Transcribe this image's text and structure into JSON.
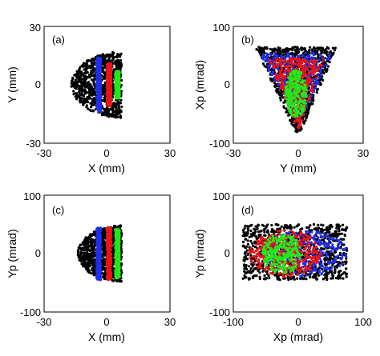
{
  "colors": {
    "black": "#000000",
    "blue": "#1f2ee8",
    "red": "#e8141a",
    "green": "#22e81a"
  },
  "chart_data": [
    {
      "id": "a",
      "type": "scatter",
      "panel_label": "(a)",
      "xlabel": "X (mm)",
      "ylabel": "Y (mm)",
      "xlim": [
        -30,
        30
      ],
      "ylim": [
        -30,
        30
      ],
      "xticks": [
        "-30",
        "0",
        "30"
      ],
      "yticks": [
        "-30",
        "0",
        "30"
      ],
      "grid": false,
      "series": [
        {
          "color": "black",
          "shape": "half-disk",
          "x_range": [
            -17,
            7
          ],
          "y_range": [
            -17,
            17
          ],
          "edge_x": -5
        },
        {
          "color": "blue",
          "shape": "band",
          "x_range": [
            -5,
            -3
          ],
          "y_range": [
            -14,
            14
          ]
        },
        {
          "color": "red",
          "shape": "band",
          "x_range": [
            0,
            2
          ],
          "y_range": [
            -11,
            11
          ]
        },
        {
          "color": "green",
          "shape": "band",
          "x_range": [
            4,
            6
          ],
          "y_range": [
            -7,
            7
          ]
        }
      ]
    },
    {
      "id": "b",
      "type": "scatter",
      "panel_label": "(b)",
      "xlabel": "Y (mm)",
      "ylabel": "Xp (mrad)",
      "xlim": [
        -30,
        30
      ],
      "ylim": [
        -100,
        100
      ],
      "xticks": [
        "-30",
        "0",
        "30"
      ],
      "yticks": [
        "-100",
        "0",
        "100"
      ],
      "grid": false,
      "series": [
        {
          "color": "black",
          "shape": "triangle",
          "top_y": 65,
          "top_x_range": [
            -20,
            18
          ],
          "apex": [
            0,
            -90
          ]
        },
        {
          "color": "blue",
          "shape": "triangle",
          "top_y": 55,
          "top_x_range": [
            -18,
            16
          ],
          "apex": [
            0,
            -70
          ]
        },
        {
          "color": "red",
          "shape": "triangle",
          "top_y": 45,
          "top_x_range": [
            -14,
            12
          ],
          "apex": [
            0,
            -80
          ]
        },
        {
          "color": "green",
          "shape": "blob",
          "center": [
            -1,
            -15
          ],
          "x_halfwidth": 5,
          "y_halfwidth": 40
        }
      ]
    },
    {
      "id": "c",
      "type": "scatter",
      "panel_label": "(c)",
      "xlabel": "X (mm)",
      "ylabel": "Yp (mrad)",
      "xlim": [
        -30,
        30
      ],
      "ylim": [
        -100,
        100
      ],
      "xticks": [
        "-30",
        "0",
        "30"
      ],
      "yticks": [
        "-100",
        "0",
        "100"
      ],
      "grid": false,
      "series": [
        {
          "color": "black",
          "shape": "half-disk",
          "x_range": [
            -14,
            7
          ],
          "y_range": [
            -48,
            48
          ],
          "edge_x": -8
        },
        {
          "color": "blue",
          "shape": "band",
          "x_range": [
            -5,
            -3
          ],
          "y_range": [
            -45,
            45
          ]
        },
        {
          "color": "red",
          "shape": "band",
          "x_range": [
            0,
            2
          ],
          "y_range": [
            -45,
            45
          ]
        },
        {
          "color": "green",
          "shape": "band",
          "x_range": [
            4,
            6
          ],
          "y_range": [
            -42,
            42
          ]
        }
      ]
    },
    {
      "id": "d",
      "type": "scatter",
      "panel_label": "(d)",
      "xlabel": "Xp (mrad)",
      "ylabel": "Yp (mrad)",
      "xlim": [
        -100,
        100
      ],
      "ylim": [
        -100,
        100
      ],
      "xticks": [
        "-100",
        "0",
        "100"
      ],
      "yticks": [
        "-100",
        "0",
        "100"
      ],
      "grid": false,
      "series": [
        {
          "color": "black",
          "shape": "rounded-rect",
          "x_range": [
            -85,
            75
          ],
          "y_range": [
            -45,
            50
          ]
        },
        {
          "color": "blue",
          "shape": "ellipse",
          "center": [
            10,
            0
          ],
          "x_halfwidth": 65,
          "y_halfwidth": 40
        },
        {
          "color": "red",
          "shape": "ellipse",
          "center": [
            -20,
            0
          ],
          "x_halfwidth": 55,
          "y_halfwidth": 40
        },
        {
          "color": "green",
          "shape": "ellipse",
          "center": [
            -25,
            0
          ],
          "x_halfwidth": 30,
          "y_halfwidth": 35
        }
      ]
    }
  ]
}
